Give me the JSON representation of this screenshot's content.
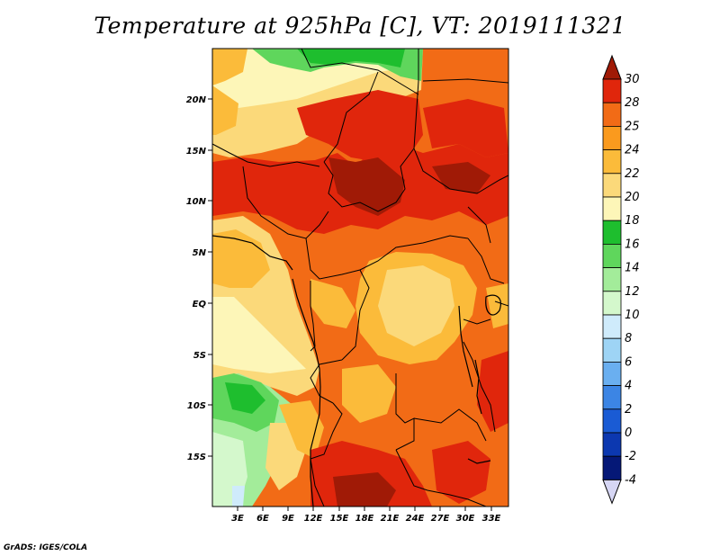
{
  "title": "Temperature at 925hPa [C], VT: 2019111321",
  "credit": "GrADS: IGES/COLA",
  "lat_labels": [
    "20N",
    "15N",
    "10N",
    "5N",
    "EQ",
    "5S",
    "10S",
    "15S"
  ],
  "lon_labels": [
    "3E",
    "6E",
    "9E",
    "12E",
    "15E",
    "18E",
    "21E",
    "24E",
    "27E",
    "30E",
    "33E"
  ],
  "colorbar": {
    "labels": [
      "30",
      "28",
      "25",
      "24",
      "22",
      "20",
      "18",
      "16",
      "14",
      "12",
      "10",
      "8",
      "6",
      "4",
      "2",
      "0",
      "-2",
      "-4"
    ],
    "colors": [
      "#a01a06",
      "#e0260c",
      "#f26b16",
      "#fa9a1e",
      "#fbbb3a",
      "#fbd97a",
      "#fdf6b8",
      "#1ebe2e",
      "#5fd65c",
      "#a3ec9a",
      "#d4f8cc",
      "#cfebfb",
      "#9ed4f5",
      "#6aaff0",
      "#3c85e4",
      "#1a5bd4",
      "#0c38b0",
      "#051877",
      "#d6d6f4"
    ]
  },
  "map": {
    "region": "Central Africa",
    "lon_range": [
      "1E",
      "35E"
    ],
    "lat_range": [
      "20S",
      "24N"
    ]
  }
}
